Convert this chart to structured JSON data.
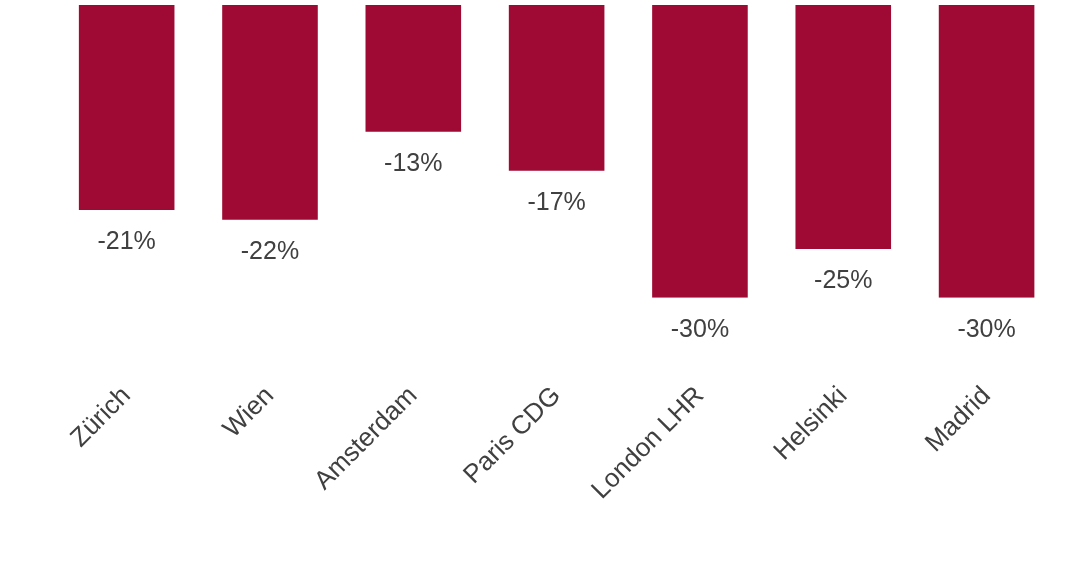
{
  "chart_data": {
    "type": "bar",
    "categories": [
      "Zürich",
      "Wien",
      "Amsterdam",
      "Paris CDG",
      "London LHR",
      "Helsinki",
      "Madrid"
    ],
    "values": [
      -21,
      -22,
      -13,
      -17,
      -30,
      -25,
      -30
    ],
    "value_labels": [
      "-21%",
      "-22%",
      "-13%",
      "-17%",
      "-30%",
      "-25%",
      "-30%"
    ],
    "color": "#9e0a33",
    "grid": false,
    "legend": false
  }
}
